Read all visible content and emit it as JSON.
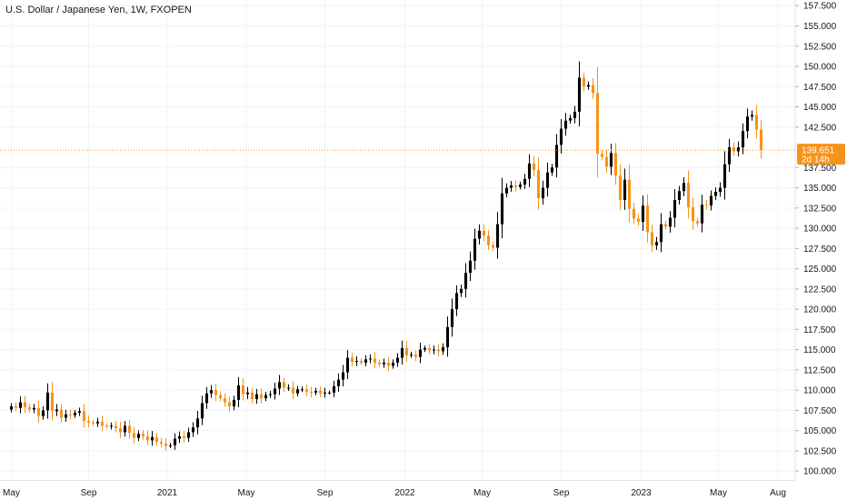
{
  "chart_data": {
    "type": "candlestick",
    "title": "U.S. Dollar / Japanese Yen, 1W, FXOPEN",
    "interval": "1W",
    "ylim": [
      98.9,
      158.2
    ],
    "yticks": [
      100.0,
      102.5,
      105.0,
      107.5,
      110.0,
      112.5,
      115.0,
      117.5,
      120.0,
      122.5,
      125.0,
      127.5,
      130.0,
      132.5,
      135.0,
      137.5,
      142.5,
      145.0,
      147.5,
      150.0,
      152.5,
      155.0,
      157.5
    ],
    "ytick_labels": [
      "100.000",
      "102.500",
      "105.000",
      "107.500",
      "110.000",
      "112.500",
      "115.000",
      "117.500",
      "120.000",
      "122.500",
      "125.000",
      "127.500",
      "130.000",
      "132.500",
      "135.000",
      "137.500",
      "142.500",
      "145.000",
      "147.500",
      "150.000",
      "152.500",
      "155.000",
      "157.500"
    ],
    "xticks": [
      {
        "label": "May",
        "x": 0
      },
      {
        "label": "Sep",
        "x": 17
      },
      {
        "label": "2021",
        "x": 34.3
      },
      {
        "label": "May",
        "x": 51.7
      },
      {
        "label": "Sep",
        "x": 69
      },
      {
        "label": "2022",
        "x": 86.6
      },
      {
        "label": "May",
        "x": 103.6
      },
      {
        "label": "Sep",
        "x": 121
      },
      {
        "label": "2023",
        "x": 138.6
      },
      {
        "label": "May",
        "x": 155.6
      },
      {
        "label": "Aug",
        "x": 168.7
      }
    ],
    "xlim": [
      -2.5,
      172.5
    ],
    "closes": [
      108.0,
      107.8,
      108.5,
      107.9,
      107.6,
      107.8,
      106.8,
      107.5,
      109.7,
      107.4,
      107.6,
      106.6,
      107.0,
      106.9,
      107.2,
      107.4,
      106.2,
      106.0,
      105.9,
      106.1,
      105.6,
      105.5,
      105.6,
      105.3,
      104.8,
      105.6,
      104.7,
      104.1,
      104.6,
      104.3,
      103.8,
      104.2,
      103.6,
      103.4,
      103.1,
      103.2,
      104.0,
      104.3,
      104.1,
      104.8,
      105.4,
      106.5,
      108.4,
      109.6,
      110.0,
      109.4,
      109.0,
      108.5,
      108.0,
      108.8,
      110.6,
      109.5,
      109.7,
      108.9,
      109.5,
      109.0,
      109.4,
      109.5,
      110.2,
      111.0,
      110.3,
      110.3,
      109.6,
      110.1,
      110.1,
      109.8,
      109.7,
      109.9,
      109.6,
      109.7,
      109.7,
      110.5,
      111.3,
      112.2,
      114.0,
      113.5,
      113.6,
      113.4,
      113.8,
      113.9,
      113.4,
      113.2,
      113.4,
      113.0,
      113.4,
      114.0,
      115.2,
      114.3,
      114.4,
      114.1,
      115.0,
      115.2,
      114.9,
      115.0,
      114.8,
      115.3,
      117.8,
      120.0,
      122.0,
      122.5,
      124.5,
      126.0,
      128.7,
      129.7,
      129.1,
      127.9,
      127.6,
      130.5,
      134.3,
      135.0,
      135.3,
      135.1,
      135.4,
      136.1,
      138.0,
      137.2,
      133.7,
      135.0,
      136.9,
      137.5,
      140.3,
      142.3,
      143.3,
      143.6,
      144.4,
      148.6,
      147.5,
      147.7,
      146.7,
      139.2,
      138.8,
      137.6,
      139.3,
      136.5,
      133.5,
      136.0,
      132.4,
      131.2,
      130.8,
      132.8,
      129.5,
      127.9,
      128.3,
      130.5,
      130.2,
      131.3,
      133.5,
      134.6,
      135.6,
      132.6,
      130.9,
      130.6,
      132.9,
      132.8,
      134.0,
      134.5,
      135.0,
      137.9,
      140.0,
      139.5,
      140.0,
      142.0,
      143.8,
      144.0,
      142.2,
      139.651
    ],
    "up_color": "#000000",
    "down_color": "#f7931a",
    "last_price": {
      "value": 139.651,
      "label": "139.651",
      "countdown": "2d 14h",
      "color": "#f7931a"
    }
  }
}
